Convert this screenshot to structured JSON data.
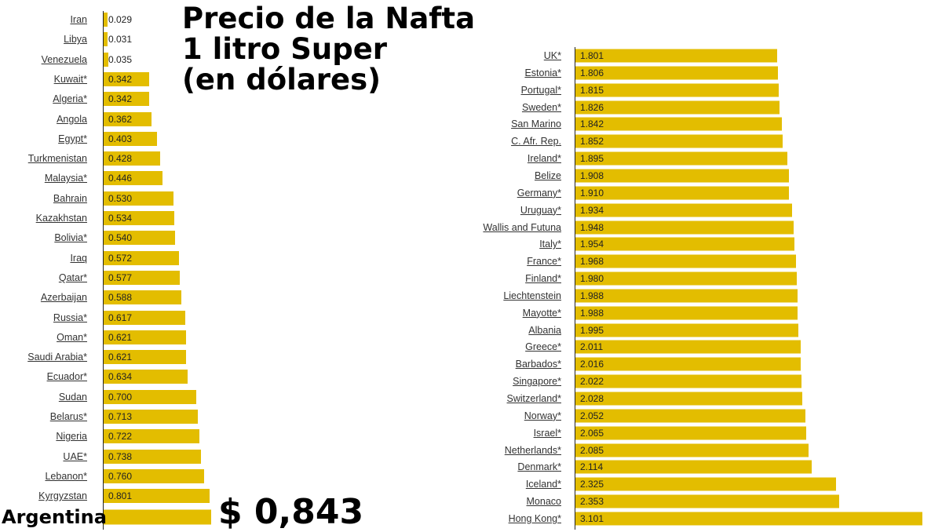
{
  "chart_data": [
    {
      "type": "bar",
      "orientation": "horizontal",
      "title": "Precio de la Nafta\n1 litro Super\n(en dólares)",
      "bar_color": "#e3bd00",
      "categories": [
        "Iran",
        "Libya",
        "Venezuela",
        "Kuwait*",
        "Algeria*",
        "Angola",
        "Egypt*",
        "Turkmenistan",
        "Malaysia*",
        "Bahrain",
        "Kazakhstan",
        "Bolivia*",
        "Iraq",
        "Qatar*",
        "Azerbaijan",
        "Russia*",
        "Oman*",
        "Saudi Arabia*",
        "Ecuador*",
        "Sudan",
        "Belarus*",
        "Nigeria",
        "UAE*",
        "Lebanon*",
        "Kyrgyzstan"
      ],
      "values": [
        0.029,
        0.031,
        0.035,
        0.342,
        0.342,
        0.362,
        0.403,
        0.428,
        0.446,
        0.53,
        0.534,
        0.54,
        0.572,
        0.577,
        0.588,
        0.617,
        0.621,
        0.621,
        0.634,
        0.7,
        0.713,
        0.722,
        0.738,
        0.76,
        0.801
      ],
      "value_labels": [
        "0.029",
        "0.031",
        "0.035",
        "0.342",
        "0.342",
        "0.362",
        "0.403",
        "0.428",
        "0.446",
        "0.530",
        "0.534",
        "0.540",
        "0.572",
        "0.577",
        "0.588",
        "0.617",
        "0.621",
        "0.621",
        "0.634",
        "0.700",
        "0.713",
        "0.722",
        "0.738",
        "0.760",
        "0.801"
      ],
      "highlight": {
        "category": "Argentina",
        "value": 0.843,
        "label": "$ 0,843"
      }
    },
    {
      "type": "bar",
      "orientation": "horizontal",
      "bar_color": "#e3bd00",
      "categories": [
        "UK*",
        "Estonia*",
        "Portugal*",
        "Sweden*",
        "San Marino",
        "C. Afr. Rep.",
        "Ireland*",
        "Belize",
        "Germany*",
        "Uruguay*",
        "Wallis and Futuna",
        "Italy*",
        "France*",
        "Finland*",
        "Liechtenstein",
        "Mayotte*",
        "Albania",
        "Greece*",
        "Barbados*",
        "Singapore*",
        "Switzerland*",
        "Norway*",
        "Israel*",
        "Netherlands*",
        "Denmark*",
        "Iceland*",
        "Monaco",
        "Hong Kong*"
      ],
      "values": [
        1.801,
        1.806,
        1.815,
        1.826,
        1.842,
        1.852,
        1.895,
        1.908,
        1.91,
        1.934,
        1.948,
        1.954,
        1.968,
        1.98,
        1.988,
        1.988,
        1.995,
        2.011,
        2.016,
        2.022,
        2.028,
        2.052,
        2.065,
        2.085,
        2.114,
        2.325,
        2.353,
        3.101
      ],
      "value_labels": [
        "1.801",
        "1.806",
        "1.815",
        "1.826",
        "1.842",
        "1.852",
        "1.895",
        "1.908",
        "1.910",
        "1.934",
        "1.948",
        "1.954",
        "1.968",
        "1.980",
        "1.988",
        "1.988",
        "1.995",
        "2.011",
        "2.016",
        "2.022",
        "2.028",
        "2.052",
        "2.065",
        "2.085",
        "2.114",
        "2.325",
        "2.353",
        "3.101"
      ]
    }
  ]
}
